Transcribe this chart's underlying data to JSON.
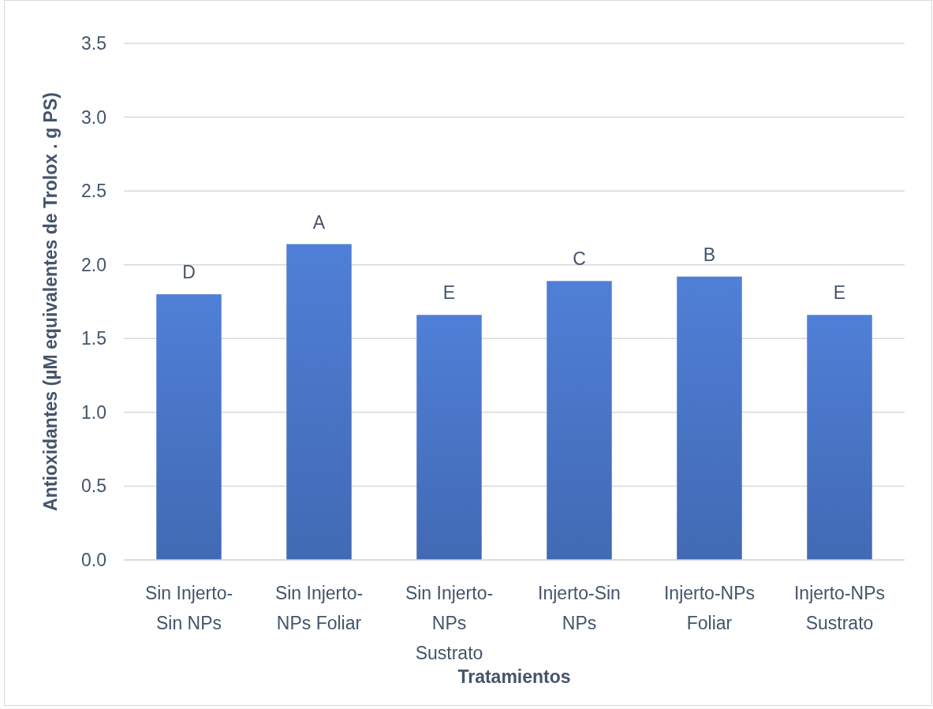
{
  "chart_data": {
    "type": "bar",
    "categories": [
      "Sin Injerto-Sin NPs",
      "Sin Injerto-NPs Foliar",
      "Sin Injerto-NPs Sustrato",
      "Injerto-Sin NPs",
      "Injerto-NPs Foliar",
      "Injerto-NPs Sustrato"
    ],
    "values": [
      1.8,
      2.14,
      1.66,
      1.89,
      1.92,
      1.66
    ],
    "color": "#4a76c8",
    "xlabel": "Tratamientos",
    "ylabel": "Antioxidantes (µM equivalentes de Trolox . g PS)",
    "ylim": [
      0,
      3.5
    ],
    "yticks": [
      {
        "value": 0,
        "label": "0.0"
      },
      0.5,
      {
        "value": 1,
        "label": "1.0"
      },
      1.5,
      {
        "value": 2,
        "label": "2.0"
      },
      2.5,
      {
        "value": 3,
        "label": "3.0"
      },
      3.5
    ],
    "grid": "y",
    "annotations": [
      {
        "text": "D",
        "x": "Sin Injerto-Sin NPs",
        "y": 1.8
      },
      {
        "text": "A",
        "x": "Sin Injerto-NPs Foliar",
        "y": 2.14
      },
      {
        "text": "E",
        "x": "Sin Injerto-NPs Sustrato",
        "y": 1.66
      },
      {
        "text": "C",
        "x": "Injerto-Sin NPs",
        "y": 1.89
      },
      {
        "text": "B",
        "x": "Injerto-NPs Foliar",
        "y": 1.92
      },
      {
        "text": "E",
        "x": "Injerto-NPs Sustrato",
        "y": 1.66
      }
    ]
  }
}
